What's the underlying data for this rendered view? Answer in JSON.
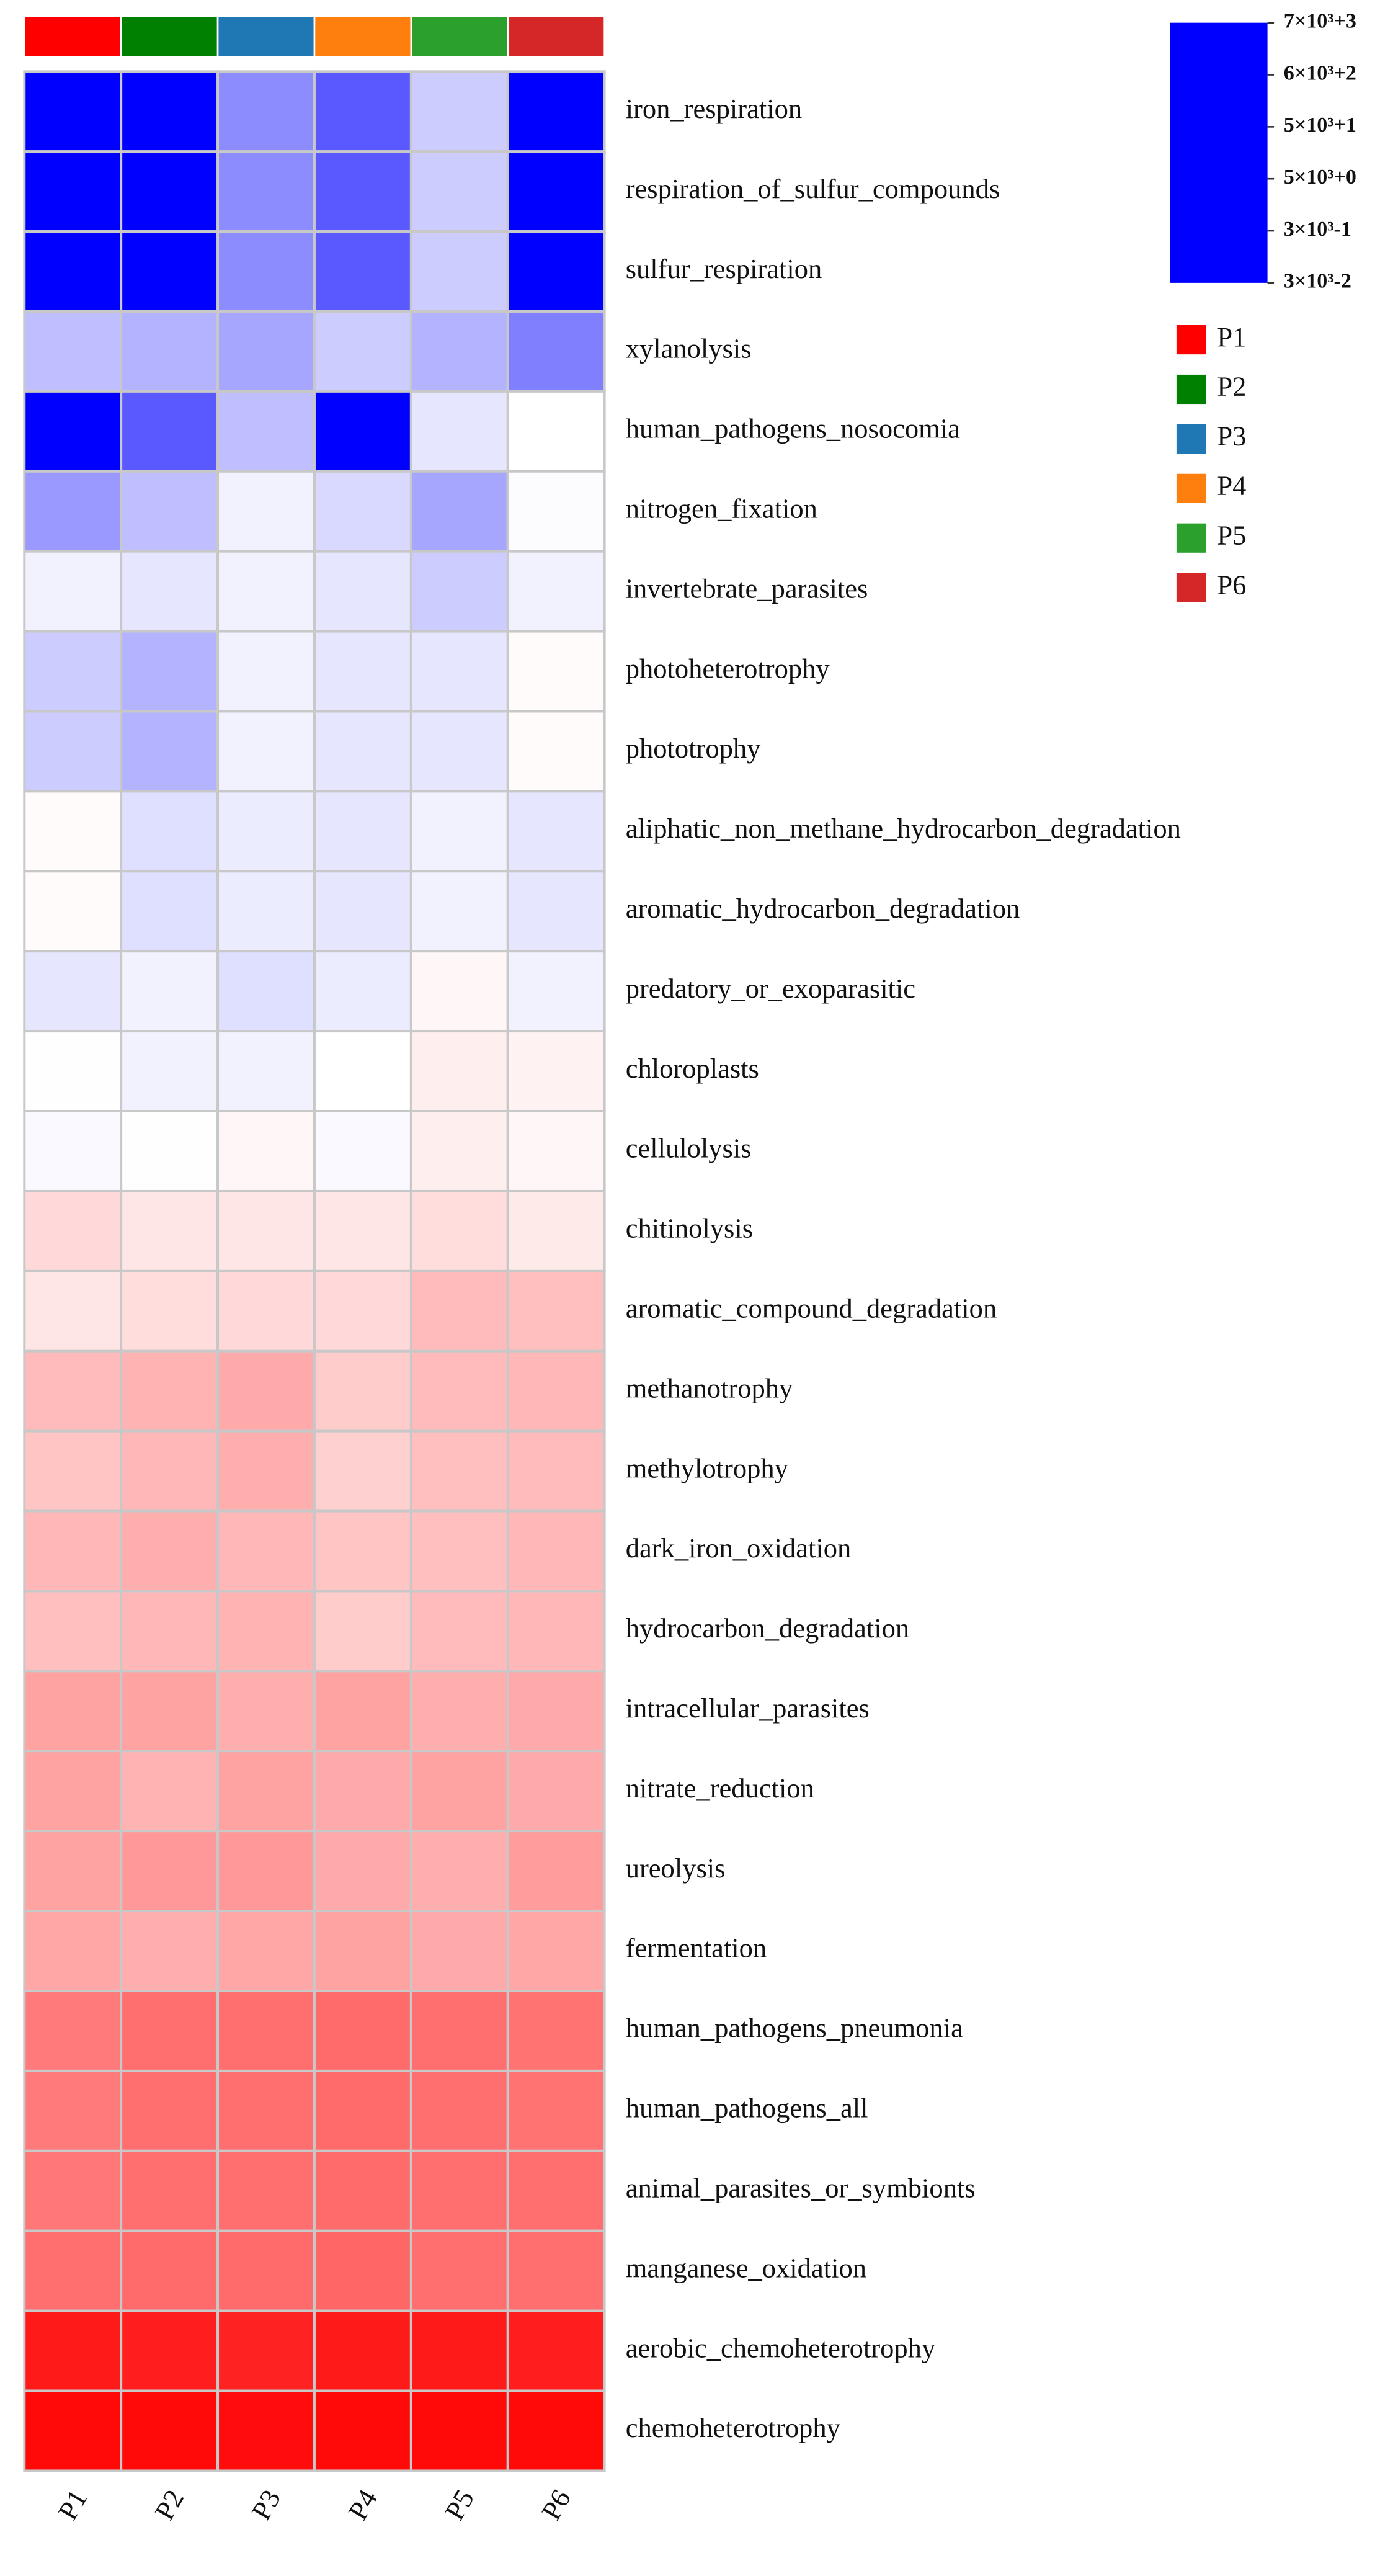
{
  "chart_data": {
    "type": "heatmap",
    "columns": [
      "P1",
      "P2",
      "P3",
      "P4",
      "P5",
      "P6"
    ],
    "groups": [
      {
        "name": "P1",
        "color": "#ff0000"
      },
      {
        "name": "P2",
        "color": "#008000"
      },
      {
        "name": "P3",
        "color": "#1f77b4"
      },
      {
        "name": "P4",
        "color": "#ff7f0e"
      },
      {
        "name": "P5",
        "color": "#2ca02c"
      },
      {
        "name": "P6",
        "color": "#d62728"
      }
    ],
    "rows": [
      "iron_respiration",
      "respiration_of_sulfur_compounds",
      "sulfur_respiration",
      "xylanolysis",
      "human_pathogens_nosocomia",
      "nitrogen_fixation",
      "invertebrate_parasites",
      "photoheterotrophy",
      "phototrophy",
      "aliphatic_non_methane_hydrocarbon_degradation",
      "aromatic_hydrocarbon_degradation",
      "predatory_or_exoparasitic",
      "chloroplasts",
      "cellulolysis",
      "chitinolysis",
      "aromatic_compound_degradation",
      "methanotrophy",
      "methylotrophy",
      "dark_iron_oxidation",
      "hydrocarbon_degradation",
      "intracellular_parasites",
      "nitrate_reduction",
      "ureolysis",
      "fermentation",
      "human_pathogens_pneumonia",
      "human_pathogens_all",
      "animal_parasites_or_symbionts",
      "manganese_oxidation",
      "aerobic_chemoheterotrophy",
      "chemoheterotrophy"
    ],
    "values": [
      [
        -2,
        -2,
        -0.9,
        -1.3,
        -0.4,
        -2
      ],
      [
        -2,
        -2,
        -0.9,
        -1.3,
        -0.4,
        -2
      ],
      [
        -2,
        -2,
        -0.9,
        -1.3,
        -0.4,
        -2
      ],
      [
        -0.5,
        -0.6,
        -0.7,
        -0.4,
        -0.6,
        -1.0
      ],
      [
        -2,
        -1.3,
        -0.5,
        -2,
        -0.2,
        0
      ],
      [
        -0.8,
        -0.5,
        -0.1,
        -0.3,
        -0.7,
        -0.02
      ],
      [
        -0.1,
        -0.2,
        -0.1,
        -0.2,
        -0.4,
        -0.1
      ],
      [
        -0.4,
        -0.6,
        -0.1,
        -0.2,
        -0.2,
        0.05
      ],
      [
        -0.4,
        -0.6,
        -0.1,
        -0.2,
        -0.2,
        0.05
      ],
      [
        0.05,
        -0.25,
        -0.15,
        -0.2,
        -0.1,
        -0.2
      ],
      [
        0.05,
        -0.25,
        -0.15,
        -0.2,
        -0.1,
        -0.2
      ],
      [
        -0.2,
        -0.1,
        -0.25,
        -0.15,
        0.1,
        -0.1
      ],
      [
        0.01,
        -0.1,
        -0.1,
        0,
        0.2,
        0.15
      ],
      [
        -0.05,
        0.01,
        0.1,
        -0.05,
        0.2,
        0.1
      ],
      [
        0.45,
        0.3,
        0.3,
        0.3,
        0.4,
        0.25
      ],
      [
        0.3,
        0.4,
        0.45,
        0.45,
        0.8,
        0.75
      ],
      [
        0.8,
        0.9,
        1.0,
        0.6,
        0.8,
        0.85
      ],
      [
        0.7,
        0.85,
        0.95,
        0.55,
        0.75,
        0.8
      ],
      [
        0.85,
        0.95,
        0.85,
        0.7,
        0.75,
        0.85
      ],
      [
        0.75,
        0.85,
        0.9,
        0.6,
        0.8,
        0.85
      ],
      [
        1.1,
        1.1,
        0.95,
        1.1,
        0.95,
        1.0
      ],
      [
        1.1,
        0.9,
        1.1,
        1.0,
        1.1,
        1.0
      ],
      [
        1.1,
        1.2,
        1.2,
        1.0,
        0.95,
        1.15
      ],
      [
        1.05,
        0.95,
        1.05,
        1.1,
        1.0,
        1.05
      ],
      [
        1.55,
        1.7,
        1.7,
        1.75,
        1.7,
        1.65
      ],
      [
        1.55,
        1.7,
        1.7,
        1.75,
        1.7,
        1.65
      ],
      [
        1.6,
        1.7,
        1.7,
        1.75,
        1.7,
        1.7
      ],
      [
        1.7,
        1.75,
        1.75,
        1.8,
        1.7,
        1.7
      ],
      [
        2.7,
        2.65,
        2.6,
        2.7,
        2.7,
        2.65
      ],
      [
        2.9,
        2.9,
        2.85,
        2.9,
        2.9,
        2.9
      ]
    ],
    "colorscale": [
      [
        -2,
        "#0000ff"
      ],
      [
        0,
        "#ffffff"
      ],
      [
        3,
        "#ff0000"
      ]
    ],
    "zlim": [
      -2,
      3
    ],
    "zticks": [
      {
        "value": 3,
        "label": "7×10³+3"
      },
      {
        "value": 2,
        "label": "6×10³+2"
      },
      {
        "value": 1,
        "label": "5×10³+1"
      },
      {
        "value": 0,
        "label": "5×10³+0"
      },
      {
        "value": -1,
        "label": "3×10³-1"
      },
      {
        "value": -2,
        "label": "3×10³-2"
      }
    ],
    "cell_border": "#c8c8c8"
  }
}
